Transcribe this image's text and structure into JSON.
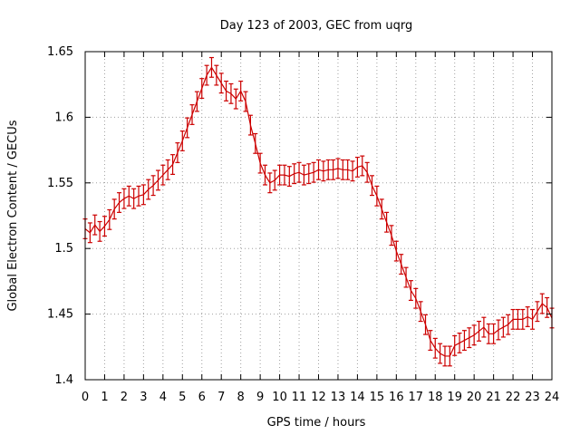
{
  "chart_data": {
    "type": "line",
    "title": "Day 123 of 2003, GEC from uqrg",
    "xlabel": "GPS time / hours",
    "ylabel": "Global Electron Content / GECUs",
    "xlim": [
      0,
      24
    ],
    "ylim": [
      1.4,
      1.65
    ],
    "xticks": [
      "0",
      "1",
      "2",
      "3",
      "4",
      "5",
      "6",
      "7",
      "8",
      "9",
      "10",
      "11",
      "12",
      "13",
      "14",
      "15",
      "16",
      "17",
      "18",
      "19",
      "20",
      "21",
      "22",
      "23",
      "24"
    ],
    "yticks": [
      "1.4",
      "1.45",
      "1.5",
      "1.55",
      "1.6",
      "1.65"
    ],
    "grid": true,
    "series": [
      {
        "name": "GEC",
        "color": "#cc0000",
        "error": 0.0075,
        "points": [
          [
            0.0,
            1.515
          ],
          [
            0.25,
            1.512
          ],
          [
            0.5,
            1.518
          ],
          [
            0.75,
            1.513
          ],
          [
            1.0,
            1.517
          ],
          [
            1.25,
            1.522
          ],
          [
            1.5,
            1.53
          ],
          [
            1.75,
            1.535
          ],
          [
            2.0,
            1.538
          ],
          [
            2.25,
            1.54
          ],
          [
            2.5,
            1.538
          ],
          [
            2.75,
            1.54
          ],
          [
            3.0,
            1.541
          ],
          [
            3.25,
            1.545
          ],
          [
            3.5,
            1.548
          ],
          [
            3.75,
            1.552
          ],
          [
            4.0,
            1.556
          ],
          [
            4.25,
            1.56
          ],
          [
            4.5,
            1.564
          ],
          [
            4.75,
            1.573
          ],
          [
            5.0,
            1.582
          ],
          [
            5.25,
            1.592
          ],
          [
            5.5,
            1.602
          ],
          [
            5.75,
            1.612
          ],
          [
            6.0,
            1.622
          ],
          [
            6.25,
            1.632
          ],
          [
            6.5,
            1.638
          ],
          [
            6.75,
            1.632
          ],
          [
            7.0,
            1.626
          ],
          [
            7.25,
            1.62
          ],
          [
            7.5,
            1.618
          ],
          [
            7.75,
            1.614
          ],
          [
            8.0,
            1.62
          ],
          [
            8.25,
            1.612
          ],
          [
            8.5,
            1.594
          ],
          [
            8.75,
            1.58
          ],
          [
            9.0,
            1.565
          ],
          [
            9.25,
            1.556
          ],
          [
            9.5,
            1.55
          ],
          [
            9.75,
            1.552
          ],
          [
            10.0,
            1.556
          ],
          [
            10.25,
            1.556
          ],
          [
            10.5,
            1.555
          ],
          [
            10.75,
            1.557
          ],
          [
            11.0,
            1.558
          ],
          [
            11.25,
            1.556
          ],
          [
            11.5,
            1.557
          ],
          [
            11.75,
            1.558
          ],
          [
            12.0,
            1.56
          ],
          [
            12.25,
            1.559
          ],
          [
            12.5,
            1.56
          ],
          [
            12.75,
            1.56
          ],
          [
            13.0,
            1.561
          ],
          [
            13.25,
            1.56
          ],
          [
            13.5,
            1.56
          ],
          [
            13.75,
            1.559
          ],
          [
            14.0,
            1.562
          ],
          [
            14.25,
            1.563
          ],
          [
            14.5,
            1.558
          ],
          [
            14.75,
            1.548
          ],
          [
            15.0,
            1.54
          ],
          [
            15.25,
            1.53
          ],
          [
            15.5,
            1.52
          ],
          [
            15.75,
            1.51
          ],
          [
            16.0,
            1.498
          ],
          [
            16.25,
            1.488
          ],
          [
            16.5,
            1.478
          ],
          [
            16.75,
            1.468
          ],
          [
            17.0,
            1.462
          ],
          [
            17.25,
            1.452
          ],
          [
            17.5,
            1.442
          ],
          [
            17.75,
            1.43
          ],
          [
            18.0,
            1.424
          ],
          [
            18.25,
            1.42
          ],
          [
            18.5,
            1.418
          ],
          [
            18.75,
            1.418
          ],
          [
            19.0,
            1.426
          ],
          [
            19.25,
            1.428
          ],
          [
            19.5,
            1.43
          ],
          [
            19.75,
            1.432
          ],
          [
            20.0,
            1.434
          ],
          [
            20.25,
            1.437
          ],
          [
            20.5,
            1.44
          ],
          [
            20.75,
            1.435
          ],
          [
            21.0,
            1.435
          ],
          [
            21.25,
            1.438
          ],
          [
            21.5,
            1.44
          ],
          [
            21.75,
            1.442
          ],
          [
            22.0,
            1.446
          ],
          [
            22.25,
            1.446
          ],
          [
            22.5,
            1.446
          ],
          [
            22.75,
            1.448
          ],
          [
            23.0,
            1.446
          ],
          [
            23.25,
            1.452
          ],
          [
            23.5,
            1.458
          ],
          [
            23.75,
            1.455
          ],
          [
            24.0,
            1.447
          ]
        ]
      }
    ]
  }
}
